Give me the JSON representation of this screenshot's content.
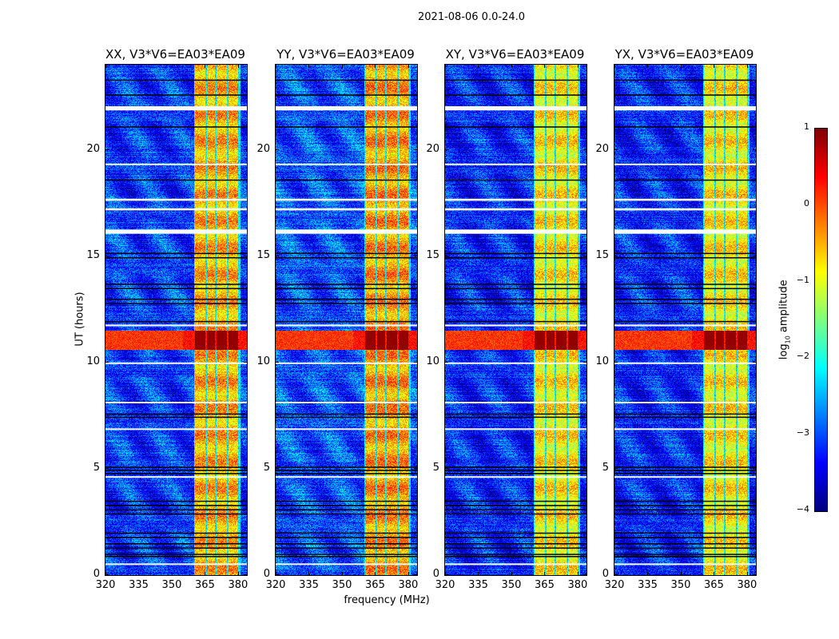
{
  "chart_data": {
    "type": "heatmap",
    "title": "2021-08-06 0.0-24.0",
    "xlabel": "frequency (MHz)",
    "ylabel": "UT (hours)",
    "xlim": [
      320,
      384
    ],
    "ylim": [
      0,
      24
    ],
    "xticks": [
      320,
      335,
      350,
      365,
      380
    ],
    "yticks": [
      0,
      5,
      10,
      15,
      20
    ],
    "panels": [
      {
        "title": "XX, V3*V6=EA03*EA09",
        "background_log_amp": -3.1,
        "band_log_amp": -0.5
      },
      {
        "title": "YY, V3*V6=EA03*EA09",
        "background_log_amp": -3.0,
        "band_log_amp": -0.4
      },
      {
        "title": "XY, V3*V6=EA03*EA09",
        "background_log_amp": -3.2,
        "band_log_amp": -0.8
      },
      {
        "title": "YX, V3*V6=EA03*EA09",
        "background_log_amp": -3.2,
        "band_log_amp": -0.8
      }
    ],
    "rfi_channels_mhz": [
      [
        360.4,
        365.1
      ],
      [
        365.8,
        369.4
      ],
      [
        370.1,
        374.8
      ],
      [
        375.5,
        380.0
      ]
    ],
    "strong_event_hours": [
      10.6,
      11.5
    ],
    "flagged_white_hours": [
      [
        16.05,
        16.25
      ],
      [
        17.15,
        17.25
      ],
      [
        17.6,
        17.7
      ],
      [
        21.85,
        22.05
      ],
      [
        19.3,
        19.35
      ],
      [
        9.95,
        10.0
      ],
      [
        8.1,
        8.15
      ],
      [
        6.85,
        6.9
      ],
      [
        4.6,
        4.65
      ],
      [
        0.5,
        0.55
      ],
      [
        11.7,
        11.78
      ]
    ],
    "flagged_black_hours": [
      23.3,
      22.6,
      21.1,
      18.6,
      15.15,
      14.95,
      13.7,
      13.5,
      13.0,
      12.8,
      11.95,
      7.6,
      7.45,
      5.1,
      4.95,
      4.8,
      3.5,
      3.3,
      3.1,
      2.9,
      2.0,
      1.8,
      1.5,
      1.3,
      1.0,
      0.9
    ],
    "colorbar": {
      "label": "log10 amplitude",
      "label_main": "log",
      "label_sub": "10",
      "label_rest": " amplitude",
      "range": [
        -4,
        1
      ],
      "ticks": [
        "1",
        "0",
        "−1",
        "−2",
        "−3",
        "−4"
      ],
      "colormap": "jet"
    }
  }
}
